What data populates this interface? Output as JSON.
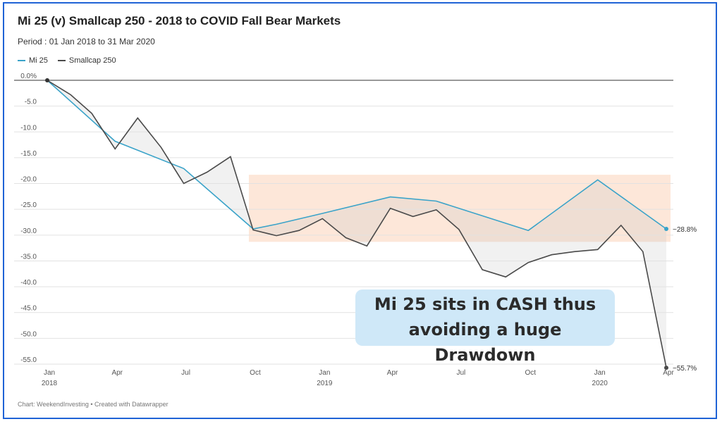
{
  "title": "Mi 25 (v) Smallcap 250 -  2018 to COVID Fall Bear Markets",
  "subtitle": "Period : 01 Jan 2018 to 31 Mar 2020",
  "footer": "Chart: WeekendInvesting • Created with Datawrapper",
  "colors": {
    "mi25": "#3aa3c9",
    "smallcap": "#4a4a4a",
    "shade": "#f0f0f0",
    "highlight": "#fde3d2",
    "callout_bg": "#cfe8f8",
    "frame": "#1f63d6"
  },
  "callout": {
    "line1": "Mi 25 sits in CASH thus",
    "line2": "avoiding a huge Drawdown"
  },
  "chart_data": {
    "type": "line",
    "title": "Mi 25 (v) Smallcap 250 -  2018 to COVID Fall Bear Markets",
    "ylim": [
      -57,
      1
    ],
    "yticks": [
      0,
      -5,
      -10,
      -15,
      -20,
      -25,
      -30,
      -35,
      -40,
      -45,
      -50,
      -55
    ],
    "ytick_labels": [
      "0.0%",
      "-5.0",
      "-10.0",
      "-15.0",
      "-20.0",
      "-25.0",
      "-30.0",
      "-35.0",
      "-40.0",
      "-45.0",
      "-50.0",
      "-55.0"
    ],
    "xlim": [
      "2018-01-01",
      "2020-04-01"
    ],
    "xticks": [
      {
        "date": "2018-01-01",
        "label": "Jan",
        "year": "2018"
      },
      {
        "date": "2018-04-01",
        "label": "Apr",
        "year": ""
      },
      {
        "date": "2018-07-01",
        "label": "Jul",
        "year": ""
      },
      {
        "date": "2018-10-01",
        "label": "Oct",
        "year": ""
      },
      {
        "date": "2019-01-01",
        "label": "Jan",
        "year": "2019"
      },
      {
        "date": "2019-04-01",
        "label": "Apr",
        "year": ""
      },
      {
        "date": "2019-07-01",
        "label": "Jul",
        "year": ""
      },
      {
        "date": "2019-10-01",
        "label": "Oct",
        "year": ""
      },
      {
        "date": "2020-01-01",
        "label": "Jan",
        "year": "2020"
      },
      {
        "date": "2020-04-01",
        "label": "Apr",
        "year": ""
      }
    ],
    "legend": "top-left",
    "grid": true,
    "series": [
      {
        "name": "Mi 25",
        "color": "#3aa3c9",
        "end_label": "−28.8%",
        "points": [
          {
            "x": "2018-01-01",
            "y": 0.0
          },
          {
            "x": "2018-04-01",
            "y": -11.8
          },
          {
            "x": "2018-07-01",
            "y": -17.1
          },
          {
            "x": "2018-10-01",
            "y": -28.8
          },
          {
            "x": "2018-11-01",
            "y": -27.9
          },
          {
            "x": "2019-01-01",
            "y": -25.8
          },
          {
            "x": "2019-04-01",
            "y": -22.6
          },
          {
            "x": "2019-06-01",
            "y": -23.4
          },
          {
            "x": "2019-10-01",
            "y": -29.1
          },
          {
            "x": "2020-01-01",
            "y": -19.3
          },
          {
            "x": "2020-04-01",
            "y": -28.8
          }
        ]
      },
      {
        "name": "Smallcap 250",
        "color": "#4a4a4a",
        "end_label": "−55.7%",
        "points": [
          {
            "x": "2018-01-01",
            "y": 0.0
          },
          {
            "x": "2018-02-01",
            "y": -2.8
          },
          {
            "x": "2018-03-01",
            "y": -6.4
          },
          {
            "x": "2018-04-01",
            "y": -13.3
          },
          {
            "x": "2018-05-01",
            "y": -7.3
          },
          {
            "x": "2018-06-01",
            "y": -13.0
          },
          {
            "x": "2018-07-01",
            "y": -20.0
          },
          {
            "x": "2018-08-01",
            "y": -17.8
          },
          {
            "x": "2018-09-01",
            "y": -14.8
          },
          {
            "x": "2018-10-01",
            "y": -29.0
          },
          {
            "x": "2018-11-01",
            "y": -30.1
          },
          {
            "x": "2018-12-01",
            "y": -29.1
          },
          {
            "x": "2019-01-01",
            "y": -26.8
          },
          {
            "x": "2019-02-01",
            "y": -30.5
          },
          {
            "x": "2019-03-01",
            "y": -32.1
          },
          {
            "x": "2019-04-01",
            "y": -24.8
          },
          {
            "x": "2019-05-01",
            "y": -26.4
          },
          {
            "x": "2019-06-01",
            "y": -25.1
          },
          {
            "x": "2019-07-01",
            "y": -28.9
          },
          {
            "x": "2019-08-01",
            "y": -36.7
          },
          {
            "x": "2019-09-01",
            "y": -38.1
          },
          {
            "x": "2019-10-01",
            "y": -35.3
          },
          {
            "x": "2019-11-01",
            "y": -33.8
          },
          {
            "x": "2019-12-01",
            "y": -33.2
          },
          {
            "x": "2020-01-01",
            "y": -32.8
          },
          {
            "x": "2020-02-01",
            "y": -28.1
          },
          {
            "x": "2020-03-01",
            "y": -33.2
          },
          {
            "x": "2020-04-01",
            "y": -55.7
          }
        ]
      }
    ],
    "highlight_band": {
      "x_start": "2018-10-01",
      "x_end": "2020-04-01",
      "y_top": -18.3,
      "y_bottom": -31.3
    }
  }
}
